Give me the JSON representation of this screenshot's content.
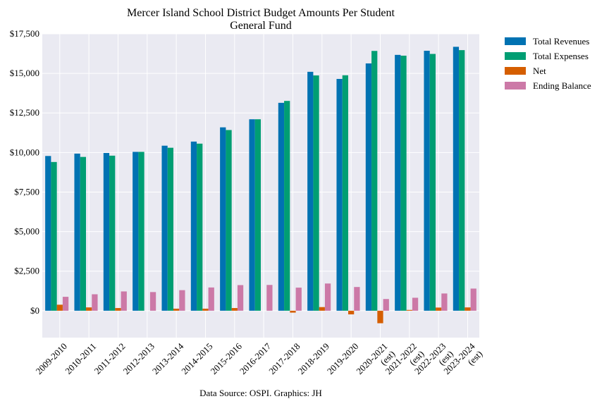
{
  "chart_data": {
    "type": "bar",
    "title": "Mercer Island School District Budget Amounts Per Student",
    "subtitle": "General Fund",
    "xlabel": "",
    "ylabel": "",
    "source": "Data Source: OSPI. Graphics: JH",
    "ylim": [
      -1700,
      17500
    ],
    "yticks": [
      0,
      2500,
      5000,
      7500,
      10000,
      12500,
      15000,
      17500
    ],
    "ytick_labels": [
      "$0",
      "$2,500",
      "$5,000",
      "$7,500",
      "$10,000",
      "$12,500",
      "$15,000",
      "$17,500"
    ],
    "grid": true,
    "legend_position": "outside-top-right",
    "categories": [
      "2009-2010",
      "2010-2011",
      "2011-2012",
      "2012-2013",
      "2013-2014",
      "2014-2015",
      "2015-2016",
      "2016-2017",
      "2017-2018",
      "2018-2019",
      "2019-2020",
      "2020-2021\n(est)",
      "2021-2022\n(est)",
      "2022-2023\n(est)",
      "2023-2024\n(est)"
    ],
    "series": [
      {
        "name": "Total Revenues",
        "color": "#0072b2",
        "values": [
          9780,
          9930,
          9970,
          10040,
          10430,
          10690,
          11590,
          12100,
          13140,
          15100,
          14650,
          15630,
          16170,
          16430,
          16680
        ]
      },
      {
        "name": "Total Expenses",
        "color": "#009e73",
        "values": [
          9400,
          9720,
          9800,
          10040,
          10300,
          10560,
          11420,
          12100,
          13260,
          14870,
          14880,
          16420,
          16120,
          16230,
          16470
        ]
      },
      {
        "name": "Net",
        "color": "#d55e00",
        "values": [
          380,
          210,
          170,
          0,
          130,
          130,
          170,
          0,
          -120,
          230,
          -230,
          -790,
          50,
          200,
          210
        ]
      },
      {
        "name": "Ending Balance",
        "color": "#cc79a7",
        "values": [
          880,
          1040,
          1220,
          1180,
          1300,
          1470,
          1620,
          1630,
          1460,
          1720,
          1500,
          740,
          820,
          1090,
          1400
        ]
      }
    ]
  }
}
